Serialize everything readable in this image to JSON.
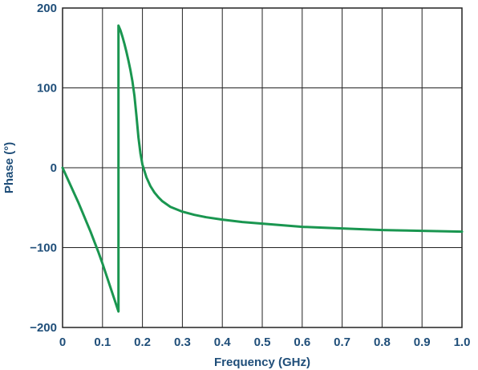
{
  "chart_data": {
    "type": "line",
    "title": "",
    "xlabel": "Frequency (GHz)",
    "ylabel": "Phase (°)",
    "xlim": [
      0,
      1.0
    ],
    "ylim": [
      -200,
      200
    ],
    "x_ticks": [
      0,
      0.1,
      0.2,
      0.3,
      0.4,
      0.5,
      0.6,
      0.7,
      0.8,
      0.9,
      1.0
    ],
    "x_tick_labels": [
      "0",
      "0.1",
      "0.2",
      "0.3",
      "0.4",
      "0.5",
      "0.6",
      "0.7",
      "0.8",
      "0.9",
      "1.0"
    ],
    "y_ticks": [
      200,
      100,
      0,
      -100,
      -200
    ],
    "y_tick_labels": [
      "200",
      "100",
      "0",
      "−100",
      "−200"
    ],
    "grid": true,
    "legend": "none",
    "line_color": "#1a9650",
    "axis_color": "#222222",
    "text_color": "#1f4e79",
    "series": [
      {
        "x": [
          0,
          0.01,
          0.02,
          0.03,
          0.04,
          0.05,
          0.06,
          0.07,
          0.08,
          0.09,
          0.1,
          0.11,
          0.12,
          0.13,
          0.14,
          0.14,
          0.145,
          0.15,
          0.155,
          0.16,
          0.165,
          0.17,
          0.175,
          0.18,
          0.185,
          0.19,
          0.195,
          0.2,
          0.21,
          0.22,
          0.23,
          0.24,
          0.25,
          0.27,
          0.3,
          0.33,
          0.36,
          0.4,
          0.45,
          0.5,
          0.55,
          0.6,
          0.65,
          0.7,
          0.75,
          0.8,
          0.85,
          0.9,
          0.95,
          1.0
        ],
        "y": [
          0,
          -11,
          -22,
          -33,
          -44,
          -56,
          -68,
          -80,
          -93,
          -106,
          -120,
          -135,
          -150,
          -165,
          -180,
          178,
          172,
          164,
          155,
          145,
          134,
          122,
          108,
          90,
          65,
          38,
          18,
          4,
          -12,
          -23,
          -31,
          -37,
          -42,
          -49,
          -55,
          -59,
          -62,
          -65,
          -68,
          -70,
          -72,
          -74,
          -75,
          -76,
          -77,
          -78,
          -78.5,
          -79,
          -79.5,
          -80
        ]
      }
    ]
  }
}
